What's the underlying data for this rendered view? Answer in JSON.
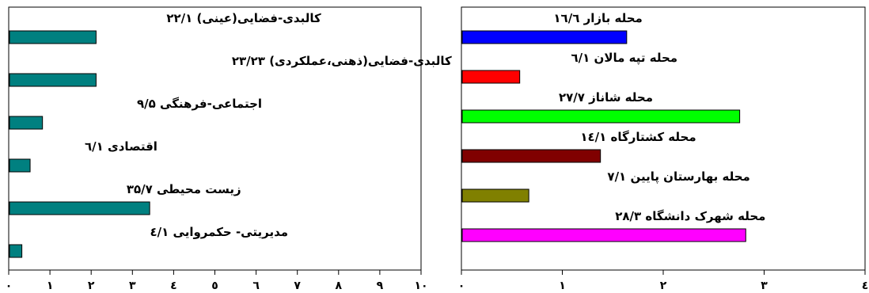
{
  "chart_data": [
    {
      "type": "bar",
      "orientation": "horizontal",
      "title": "",
      "xlabel": "",
      "ylabel": "",
      "xlim": [
        0,
        10
      ],
      "x_ticks": [
        "٠",
        "١",
        "٢",
        "٣",
        "٤",
        "٥",
        "٦",
        "٧",
        "٨",
        "٩",
        "١٠"
      ],
      "grid": false,
      "legend": "none",
      "bars": [
        {
          "label": "کالبدی-فضایی(عینی) ۲۲/۱",
          "value": 2.1,
          "color": "#008080"
        },
        {
          "label": "کالبدی-فضایی(ذهنی،عملکردی) ۲۳/۲۳",
          "value": 2.1,
          "color": "#008080"
        },
        {
          "label": "اجتماعی-فرهنگی ۹/۵",
          "value": 0.8,
          "color": "#008080"
        },
        {
          "label": "اقتصادی ٦/۱",
          "value": 0.5,
          "color": "#008080"
        },
        {
          "label": "زیست محیطی ۳۵/۷",
          "value": 3.4,
          "color": "#008080"
        },
        {
          "label": "مدیریتی- حکمروایی ٤/۱",
          "value": 0.3,
          "color": "#008080"
        }
      ]
    },
    {
      "type": "bar",
      "orientation": "horizontal",
      "title": "",
      "xlabel": "",
      "ylabel": "",
      "xlim": [
        0,
        4
      ],
      "x_ticks": [
        "٠",
        "١",
        "٢",
        "٣",
        "٤"
      ],
      "grid": false,
      "legend": "none",
      "bars": [
        {
          "label": "محله بازار ١٦/٦",
          "value": 1.63,
          "color": "#0000ff"
        },
        {
          "label": "محله تپه مالان ٦/١",
          "value": 0.57,
          "color": "#ff0000"
        },
        {
          "label": "محله شاناز ٢٧/٧",
          "value": 2.75,
          "color": "#00ff00"
        },
        {
          "label": "محله کشتارگاه ١٤/١",
          "value": 1.37,
          "color": "#800000"
        },
        {
          "label": "محله بهارستان پایین ٧/١",
          "value": 0.66,
          "color": "#808000"
        },
        {
          "label": "محله شهرک دانشگاه ٢٨/٣",
          "value": 2.81,
          "color": "#ff00ff"
        }
      ]
    }
  ]
}
